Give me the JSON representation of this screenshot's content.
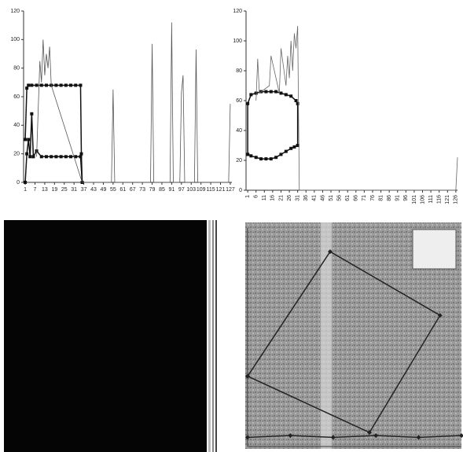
{
  "chart_data": [
    {
      "type": "line",
      "xlim": [
        0,
        128
      ],
      "xticks": [
        1,
        7,
        13,
        19,
        25,
        31,
        37,
        43,
        49,
        55,
        61,
        67,
        73,
        79,
        85,
        91,
        97,
        103,
        109,
        115,
        121,
        127
      ],
      "ylim": [
        0,
        120
      ],
      "yticks": [
        0,
        20,
        40,
        60,
        80,
        100,
        120
      ],
      "series": [
        {
          "color": "#111111",
          "marker": "square",
          "x": [
            1,
            2,
            3,
            5,
            8,
            11,
            14,
            17,
            20,
            23,
            26,
            29,
            32,
            35,
            35.5,
            36
          ],
          "values": [
            30,
            66,
            68,
            68,
            68,
            68,
            68,
            68,
            68,
            68,
            68,
            68,
            68,
            68,
            20,
            0
          ]
        },
        {
          "color": "#111111",
          "marker": "square",
          "x": [
            1,
            2,
            3,
            4,
            5,
            6,
            8,
            11,
            14,
            17,
            20,
            23,
            26,
            29,
            32,
            35,
            36
          ],
          "values": [
            0,
            20,
            30,
            18,
            48,
            18,
            22,
            18,
            18,
            18,
            18,
            18,
            18,
            18,
            18,
            18,
            0
          ]
        },
        {
          "color": "#555555",
          "marker": "none",
          "x": [
            8,
            10,
            11,
            12,
            13,
            14,
            15,
            16,
            17,
            36,
            54,
            55,
            56,
            78,
            79,
            80,
            90,
            91,
            92,
            96,
            97,
            98,
            99,
            105,
            106,
            107,
            126,
            127
          ],
          "values": [
            18,
            85,
            70,
            100,
            75,
            90,
            80,
            95,
            68,
            0,
            0,
            65,
            0,
            0,
            97,
            0,
            0,
            112,
            0,
            0,
            63,
            75,
            0,
            0,
            93,
            0,
            0,
            55
          ]
        }
      ]
    },
    {
      "type": "line",
      "xlim": [
        0,
        127
      ],
      "xticks": [
        1,
        6,
        11,
        16,
        21,
        26,
        31,
        36,
        41,
        46,
        51,
        56,
        61,
        66,
        71,
        76,
        81,
        86,
        91,
        96,
        101,
        106,
        111,
        116,
        121,
        126
      ],
      "ylim": [
        0,
        120
      ],
      "yticks": [
        0,
        20,
        40,
        60,
        80,
        100,
        120
      ],
      "series": [
        {
          "color": "#111111",
          "marker": "square",
          "x": [
            1,
            1,
            3,
            6,
            9,
            12,
            15,
            18,
            21,
            24,
            27,
            30,
            31,
            31
          ],
          "values": [
            24,
            58,
            64,
            65,
            66,
            66,
            66,
            66,
            65,
            64,
            63,
            60,
            58,
            30
          ]
        },
        {
          "color": "#111111",
          "marker": "square",
          "x": [
            1,
            3,
            6,
            9,
            12,
            15,
            18,
            21,
            24,
            27,
            29,
            31
          ],
          "values": [
            24,
            23,
            22,
            21,
            21,
            21,
            22,
            24,
            26,
            28,
            29,
            30
          ]
        },
        {
          "color": "#666666",
          "marker": "none",
          "x": [
            6,
            7,
            8,
            14,
            15,
            20,
            21,
            24,
            25,
            26,
            27,
            28,
            29,
            30,
            31,
            32,
            126,
            127
          ],
          "values": [
            60,
            88,
            65,
            70,
            90,
            65,
            95,
            70,
            90,
            75,
            100,
            80,
            105,
            95,
            110,
            0,
            0,
            22
          ]
        }
      ]
    },
    {
      "type": "line",
      "xlim": [
        0,
        100
      ],
      "ylim": [
        0,
        120
      ],
      "series": [
        {
          "color": "#222222",
          "marker": "diamond",
          "x": [
            0,
            38.6,
            90,
            57,
            0
          ],
          "values": [
            38.6,
            107,
            72,
            7.7,
            38.6
          ]
        },
        {
          "color": "#222222",
          "marker": "diamond",
          "x": [
            0,
            20,
            40,
            60,
            80,
            100
          ],
          "values": [
            5,
            6,
            5,
            6,
            5,
            6
          ]
        }
      ]
    }
  ]
}
